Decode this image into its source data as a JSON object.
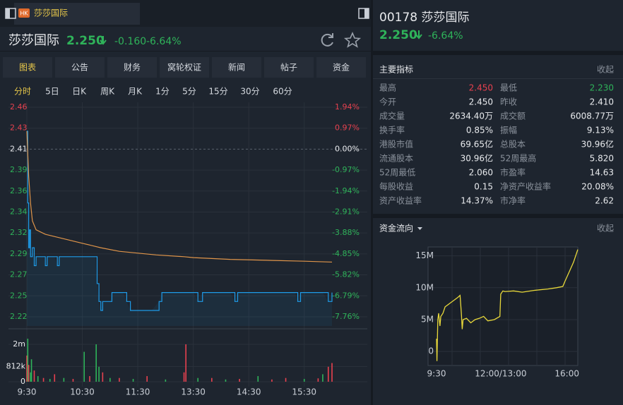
{
  "tab": {
    "badge": "HK",
    "title": "莎莎国际"
  },
  "header": {
    "name": "莎莎国际",
    "price": "2.250",
    "change": "-0.160",
    "pct": "-6.64%"
  },
  "tabs": [
    "图表",
    "公告",
    "财务",
    "窝轮权证",
    "新闻",
    "帖子",
    "资金"
  ],
  "periods": [
    "分时",
    "5日",
    "日K",
    "周K",
    "月K",
    "1分",
    "5分",
    "15分",
    "30分",
    "60分"
  ],
  "intraday": {
    "type": "line",
    "xlim": [
      0,
      330
    ],
    "xticks": [
      {
        "value": 0,
        "label": "9:30"
      },
      {
        "value": 60,
        "label": "10:30"
      },
      {
        "value": 120,
        "label": "11:30"
      },
      {
        "value": 180,
        "label": "13:30"
      },
      {
        "value": 240,
        "label": "14:30"
      },
      {
        "value": 300,
        "label": "15:30"
      }
    ],
    "ylim": [
      2.2127,
      2.4623
    ],
    "yticks": [
      {
        "value": 2.45675,
        "label": "2.46"
      },
      {
        "value": 2.43338,
        "label": "2.43"
      },
      2.41,
      {
        "value": 2.38662,
        "label": "2.39"
      },
      {
        "value": 2.36325,
        "label": "2.36"
      },
      {
        "value": 2.33987,
        "label": "2.34"
      },
      {
        "value": 2.31649,
        "label": "2.32"
      },
      {
        "value": 2.29312,
        "label": "2.29"
      },
      {
        "value": 2.26974,
        "label": "2.27"
      },
      {
        "value": 2.24636,
        "label": "2.25"
      },
      {
        "value": 2.22298,
        "label": "2.22"
      }
    ],
    "y2ticks": [
      {
        "value": 1.94,
        "label": "1.94%"
      },
      {
        "value": 0.97,
        "label": "0.97%"
      },
      {
        "value": 0,
        "label": "0.00%"
      },
      {
        "value": -0.97,
        "label": "-0.97%"
      },
      {
        "value": -1.94,
        "label": "-1.94%"
      },
      {
        "value": -2.91,
        "label": "-2.91%"
      },
      {
        "value": -3.88,
        "label": "-3.88%"
      },
      {
        "value": -4.85,
        "label": "-4.85%"
      },
      {
        "value": -5.82,
        "label": "-5.82%"
      },
      {
        "value": -6.79,
        "label": "-6.79%"
      },
      {
        "value": -7.76,
        "label": "-7.76%"
      }
    ],
    "series": [
      {
        "color": "#1e9be8",
        "x": [
          0,
          1,
          2,
          3,
          4,
          6,
          8,
          10,
          18,
          20,
          22,
          30,
          33,
          35,
          50,
          74,
          76,
          78,
          80,
          82,
          90,
          92,
          104,
          108,
          112,
          135,
          143,
          146,
          180,
          185,
          190,
          220,
          225,
          228,
          290,
          293,
          296,
          320,
          326,
          330
        ],
        "values": [
          2.43,
          2.35,
          2.3,
          2.32,
          2.29,
          2.3,
          2.28,
          2.29,
          2.29,
          2.28,
          2.29,
          2.29,
          2.28,
          2.29,
          2.29,
          2.29,
          2.26,
          2.24,
          2.23,
          2.24,
          2.24,
          2.25,
          2.25,
          2.24,
          2.23,
          2.23,
          2.24,
          2.25,
          2.25,
          2.24,
          2.25,
          2.25,
          2.24,
          2.25,
          2.25,
          2.24,
          2.25,
          2.25,
          2.24,
          2.25
        ]
      },
      {
        "color": "#e0954a",
        "x": [
          0,
          2,
          4,
          6,
          10,
          20,
          40,
          60,
          80,
          100,
          140,
          170,
          180,
          220,
          260,
          300,
          330
        ],
        "values": [
          2.43,
          2.38,
          2.35,
          2.33,
          2.32,
          2.315,
          2.31,
          2.305,
          2.3,
          2.296,
          2.292,
          2.29,
          2.289,
          2.287,
          2.286,
          2.285,
          2.284
        ]
      }
    ]
  },
  "volume": {
    "type": "bar",
    "ylim": [
      0,
      2680000
    ],
    "yticks": [
      0,
      {
        "value": 812000,
        "label": "812k"
      },
      {
        "value": 2000000,
        "label": "2m"
      }
    ],
    "x": [
      0,
      1,
      2,
      4,
      5,
      8,
      12,
      18,
      25,
      30,
      40,
      50,
      62,
      68,
      75,
      78,
      82,
      90,
      100,
      115,
      130,
      150,
      170,
      172,
      185,
      200,
      215,
      230,
      250,
      265,
      280,
      300,
      315,
      320,
      326,
      330
    ],
    "values": [
      1400000,
      2300000,
      900000,
      500000,
      1200000,
      600000,
      300000,
      200000,
      150000,
      400000,
      200000,
      150000,
      1600000,
      300000,
      2000000,
      800000,
      500000,
      200000,
      200000,
      150000,
      300000,
      120000,
      500000,
      2000000,
      200000,
      200000,
      120000,
      150000,
      300000,
      120000,
      200000,
      150000,
      180000,
      400000,
      800000,
      1000000
    ],
    "colors": [
      "#e8414f",
      "#2fb35a",
      "#e8414f",
      "#2fb35a",
      "#2fb35a",
      "#e8414f",
      "#2fb35a",
      "#e8414f",
      "#2fb35a",
      "#e8414f",
      "#2fb35a",
      "#e8414f",
      "#2fb35a",
      "#e8414f",
      "#2fb35a",
      "#2fb35a",
      "#e8414f",
      "#2fb35a",
      "#e8414f",
      "#2fb35a",
      "#e8414f",
      "#2fb35a",
      "#e8414f",
      "#e8414f",
      "#2fb35a",
      "#e8414f",
      "#2fb35a",
      "#e8414f",
      "#2fb35a",
      "#e8414f",
      "#e8414f",
      "#2fb35a",
      "#e8414f",
      "#2fb35a",
      "#e8414f",
      "#e8414f"
    ]
  },
  "side": {
    "title": "00178 莎莎国际",
    "price": "2.250",
    "pct": "-6.64%",
    "metrics_title": "主要指标",
    "metrics_toggle": "收起",
    "metrics": [
      [
        {
          "label": "最高",
          "value": "2.450",
          "color": "#e8414f"
        },
        {
          "label": "最低",
          "value": "2.230",
          "color": "#2fb35a"
        }
      ],
      [
        {
          "label": "今开",
          "value": "2.450"
        },
        {
          "label": "昨收",
          "value": "2.410"
        }
      ],
      [
        {
          "label": "成交量",
          "value": "2634.40万"
        },
        {
          "label": "成交额",
          "value": "6008.77万"
        }
      ],
      [
        {
          "label": "换手率",
          "value": "0.85%"
        },
        {
          "label": "振幅",
          "value": "9.13%"
        }
      ],
      [
        {
          "label": "港股市值",
          "value": "69.65亿"
        },
        {
          "label": "总股本",
          "value": "30.96亿"
        }
      ],
      [
        {
          "label": "流通股本",
          "value": "30.96亿"
        },
        {
          "label": "52周最高",
          "value": "5.820"
        }
      ],
      [
        {
          "label": "52周最低",
          "value": "2.060"
        },
        {
          "label": "市盈率",
          "value": "14.63"
        }
      ],
      [
        {
          "label": "每股收益",
          "value": "0.15"
        },
        {
          "label": "净资产收益率",
          "value": "20.08%"
        }
      ],
      [
        {
          "label": "资产收益率",
          "value": "14.37%"
        },
        {
          "label": "市净率",
          "value": "2.62"
        }
      ]
    ],
    "flow_title": "资金流向",
    "flow_toggle": "收起"
  },
  "flow": {
    "type": "line",
    "xlim": [
      0,
      330
    ],
    "xticks": [
      {
        "value": 0,
        "label": "9:30"
      },
      {
        "value": 150,
        "label": "12:00/13:00"
      },
      {
        "value": 330,
        "label": "16:00"
      }
    ],
    "ylim": [
      -2200000,
      16400000
    ],
    "yticks": [
      0,
      {
        "value": 5000000,
        "label": "5M"
      },
      {
        "value": 10000000,
        "label": "10M"
      },
      {
        "value": 15000000,
        "label": "15M"
      }
    ],
    "color": "#e8d83a",
    "x": [
      0,
      1,
      3,
      5,
      8,
      10,
      15,
      20,
      30,
      40,
      50,
      55,
      58,
      60,
      62,
      70,
      80,
      90,
      100,
      110,
      120,
      135,
      148,
      150,
      155,
      160,
      180,
      200,
      230,
      260,
      280,
      295,
      300,
      310,
      320,
      330
    ],
    "values": [
      2000000,
      -1500000,
      5000000,
      6000000,
      4000000,
      5500000,
      6000000,
      7000000,
      7500000,
      8000000,
      8500000,
      8800000,
      6000000,
      3500000,
      5000000,
      5200000,
      4500000,
      5000000,
      5200000,
      5500000,
      4800000,
      5000000,
      5500000,
      9000000,
      9500000,
      9400000,
      9500000,
      9300000,
      9600000,
      9800000,
      10000000,
      10200000,
      11000000,
      12500000,
      14000000,
      16000000
    ]
  }
}
